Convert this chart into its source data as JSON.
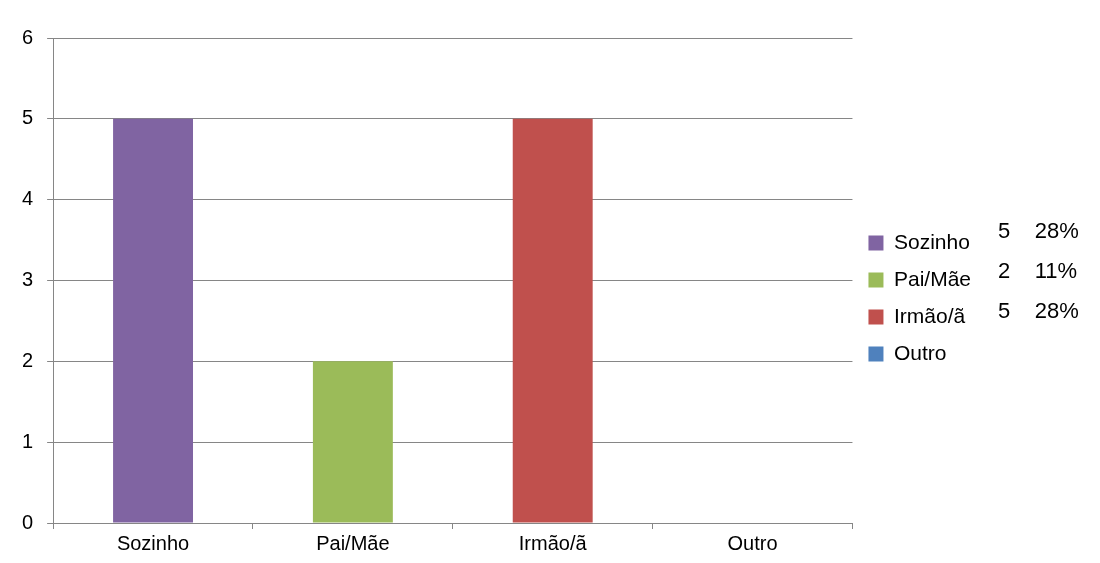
{
  "chart_data": {
    "type": "bar",
    "categories": [
      "Sozinho",
      "Pai/Mãe",
      "Irmão/ã",
      "Outro"
    ],
    "series": [
      {
        "name": "Sozinho",
        "color": "#8064a2",
        "values": [
          5,
          null,
          null,
          null
        ]
      },
      {
        "name": "Pai/Mãe",
        "color": "#9bbb59",
        "values": [
          null,
          2,
          null,
          null
        ]
      },
      {
        "name": "Irmão/ã",
        "color": "#c0504d",
        "values": [
          null,
          null,
          5,
          null
        ]
      },
      {
        "name": "Outro",
        "color": "#4f81bd",
        "values": [
          null,
          null,
          null,
          0
        ]
      }
    ],
    "ylim": [
      0,
      6
    ],
    "yticks": [
      0,
      1,
      2,
      3,
      4,
      5,
      6
    ],
    "grid": "y",
    "legend": "right",
    "annotations": [
      "5    28%",
      "2    11%",
      "5    28%"
    ]
  }
}
